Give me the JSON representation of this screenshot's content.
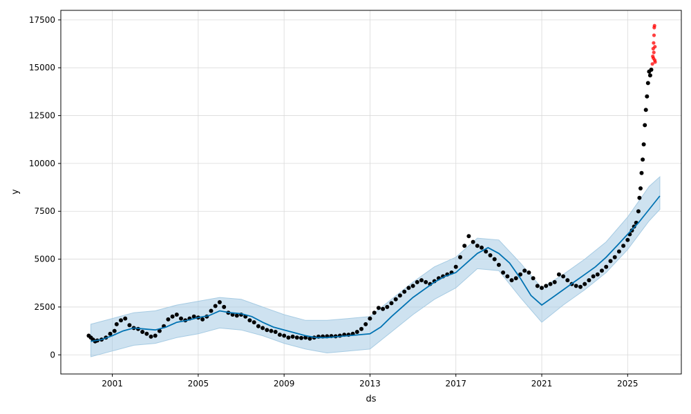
{
  "chart_data": {
    "type": "scatter",
    "title": "",
    "xlabel": "ds",
    "ylabel": "y",
    "xlim": [
      1998.6,
      2027.5
    ],
    "ylim": [
      -1000,
      18000
    ],
    "grid": true,
    "x_ticks": [
      2001,
      2005,
      2009,
      2013,
      2017,
      2021,
      2025
    ],
    "y_ticks": [
      0,
      2500,
      5000,
      7500,
      10000,
      12500,
      15000,
      17500
    ],
    "colors": {
      "observed": "#000000",
      "outlier": "#ff0000",
      "forecast": "#0072B2",
      "interval": "#a6cbe3"
    },
    "series": [
      {
        "kind": "observed_points",
        "x": [
          1999.9,
          2000.0,
          2000.1,
          2000.2,
          2000.3,
          2000.5,
          2000.7,
          2000.9,
          2001.1,
          2001.2,
          2001.4,
          2001.6,
          2001.8,
          2002.0,
          2002.2,
          2002.4,
          2002.6,
          2002.8,
          2003.0,
          2003.2,
          2003.4,
          2003.6,
          2003.8,
          2004.0,
          2004.2,
          2004.4,
          2004.6,
          2004.8,
          2005.0,
          2005.2,
          2005.4,
          2005.6,
          2005.8,
          2006.0,
          2006.2,
          2006.4,
          2006.6,
          2006.8,
          2007.0,
          2007.2,
          2007.4,
          2007.6,
          2007.8,
          2008.0,
          2008.2,
          2008.4,
          2008.6,
          2008.8,
          2009.0,
          2009.2,
          2009.4,
          2009.6,
          2009.8,
          2010.0,
          2010.2,
          2010.4,
          2010.6,
          2010.8,
          2011.0,
          2011.2,
          2011.4,
          2011.6,
          2011.8,
          2012.0,
          2012.2,
          2012.4,
          2012.6,
          2012.8,
          2013.0,
          2013.2,
          2013.4,
          2013.6,
          2013.8,
          2014.0,
          2014.2,
          2014.4,
          2014.6,
          2014.8,
          2015.0,
          2015.2,
          2015.4,
          2015.6,
          2015.8,
          2016.0,
          2016.2,
          2016.4,
          2016.6,
          2016.8,
          2017.0,
          2017.2,
          2017.4,
          2017.6,
          2017.8,
          2018.0,
          2018.2,
          2018.4,
          2018.6,
          2018.8,
          2019.0,
          2019.2,
          2019.4,
          2019.6,
          2019.8,
          2020.0,
          2020.2,
          2020.4,
          2020.6,
          2020.8,
          2021.0,
          2021.2,
          2021.4,
          2021.6,
          2021.8,
          2022.0,
          2022.2,
          2022.4,
          2022.6,
          2022.8,
          2023.0,
          2023.2,
          2023.4,
          2023.6,
          2023.8,
          2024.0,
          2024.2,
          2024.4,
          2024.6,
          2024.8,
          2025.0,
          2025.1,
          2025.2,
          2025.3,
          2025.4,
          2025.5,
          2025.55,
          2025.6,
          2025.65,
          2025.7,
          2025.75,
          2025.8,
          2025.85,
          2025.9,
          2025.95,
          2026.0,
          2026.05,
          2026.1
        ],
        "y": [
          1000,
          900,
          800,
          700,
          750,
          800,
          900,
          1100,
          1250,
          1600,
          1800,
          1900,
          1550,
          1400,
          1350,
          1200,
          1100,
          950,
          1000,
          1250,
          1500,
          1850,
          2000,
          2100,
          1900,
          1800,
          1900,
          2000,
          1950,
          1850,
          2000,
          2300,
          2550,
          2750,
          2500,
          2200,
          2100,
          2050,
          2100,
          2000,
          1800,
          1700,
          1500,
          1400,
          1300,
          1250,
          1200,
          1050,
          1000,
          900,
          950,
          900,
          880,
          900,
          850,
          900,
          950,
          960,
          970,
          980,
          970,
          1000,
          1050,
          1050,
          1100,
          1200,
          1350,
          1600,
          1900,
          2200,
          2450,
          2400,
          2500,
          2700,
          2900,
          3100,
          3300,
          3500,
          3600,
          3800,
          3900,
          3800,
          3700,
          3850,
          4000,
          4100,
          4200,
          4300,
          4600,
          5100,
          5700,
          6200,
          5900,
          5700,
          5600,
          5400,
          5200,
          5000,
          4700,
          4300,
          4100,
          3900,
          4000,
          4200,
          4400,
          4300,
          4000,
          3600,
          3500,
          3600,
          3700,
          3800,
          4200,
          4100,
          3900,
          3700,
          3600,
          3550,
          3700,
          3900,
          4100,
          4200,
          4400,
          4600,
          4900,
          5100,
          5400,
          5700,
          6000,
          6300,
          6500,
          6700,
          6900,
          7500,
          8200,
          8700,
          9500,
          10200,
          11000,
          12000,
          12800,
          13500,
          14200,
          14800,
          14600,
          14900
        ]
      },
      {
        "kind": "outlier_points",
        "x": [
          2026.15,
          2026.17,
          2026.19,
          2026.2,
          2026.21,
          2026.22,
          2026.23,
          2026.24,
          2026.25,
          2026.26,
          2026.27,
          2026.28
        ],
        "y": [
          15200,
          15600,
          16000,
          15500,
          16300,
          15800,
          16700,
          17100,
          17200,
          15400,
          16100,
          15300
        ]
      },
      {
        "kind": "forecast_line",
        "x": [
          2000.0,
          2000.5,
          2001.0,
          2001.5,
          2002.0,
          2002.5,
          2003.0,
          2003.5,
          2004.0,
          2004.5,
          2005.0,
          2005.5,
          2006.0,
          2006.5,
          2007.0,
          2007.5,
          2008.0,
          2008.5,
          2009.0,
          2009.5,
          2010.0,
          2010.5,
          2011.0,
          2011.5,
          2012.0,
          2012.5,
          2013.0,
          2013.5,
          2014.0,
          2014.5,
          2015.0,
          2015.5,
          2016.0,
          2016.5,
          2017.0,
          2017.5,
          2018.0,
          2018.5,
          2019.0,
          2019.5,
          2020.0,
          2020.5,
          2021.0,
          2021.5,
          2022.0,
          2022.5,
          2023.0,
          2023.5,
          2024.0,
          2024.5,
          2025.0,
          2025.5,
          2026.0,
          2026.5
        ],
        "y": [
          700,
          800,
          1000,
          1250,
          1400,
          1350,
          1300,
          1450,
          1700,
          1800,
          1950,
          2050,
          2300,
          2200,
          2150,
          2000,
          1700,
          1450,
          1300,
          1150,
          1000,
          900,
          900,
          950,
          1000,
          1050,
          1100,
          1450,
          2000,
          2500,
          3000,
          3400,
          3800,
          4100,
          4300,
          4800,
          5300,
          5600,
          5300,
          4800,
          4000,
          3100,
          2600,
          3000,
          3400,
          3800,
          4200,
          4600,
          5100,
          5700,
          6300,
          6900,
          7600,
          8300
        ]
      },
      {
        "kind": "interval_upper",
        "x": [
          2000.0,
          2001.0,
          2002.0,
          2003.0,
          2004.0,
          2005.0,
          2006.0,
          2007.0,
          2008.0,
          2009.0,
          2010.0,
          2011.0,
          2012.0,
          2013.0,
          2014.0,
          2015.0,
          2016.0,
          2017.0,
          2018.0,
          2019.0,
          2020.0,
          2021.0,
          2022.0,
          2023.0,
          2024.0,
          2025.0,
          2026.0,
          2026.5
        ],
        "y": [
          1600,
          1900,
          2200,
          2300,
          2600,
          2800,
          3000,
          2900,
          2500,
          2100,
          1800,
          1800,
          1900,
          2000,
          2900,
          3800,
          4600,
          5100,
          6100,
          6000,
          4800,
          3500,
          4200,
          5000,
          5900,
          7200,
          8800,
          9300
        ]
      },
      {
        "kind": "interval_lower",
        "x": [
          2000.0,
          2001.0,
          2002.0,
          2003.0,
          2004.0,
          2005.0,
          2006.0,
          2007.0,
          2008.0,
          2009.0,
          2010.0,
          2011.0,
          2012.0,
          2013.0,
          2014.0,
          2015.0,
          2016.0,
          2017.0,
          2018.0,
          2019.0,
          2020.0,
          2021.0,
          2022.0,
          2023.0,
          2024.0,
          2025.0,
          2026.0,
          2026.5
        ],
        "y": [
          -100,
          200,
          500,
          600,
          900,
          1100,
          1400,
          1300,
          1000,
          600,
          300,
          100,
          200,
          300,
          1200,
          2100,
          2900,
          3500,
          4500,
          4400,
          3000,
          1700,
          2600,
          3400,
          4300,
          5500,
          7000,
          7600
        ]
      }
    ]
  }
}
